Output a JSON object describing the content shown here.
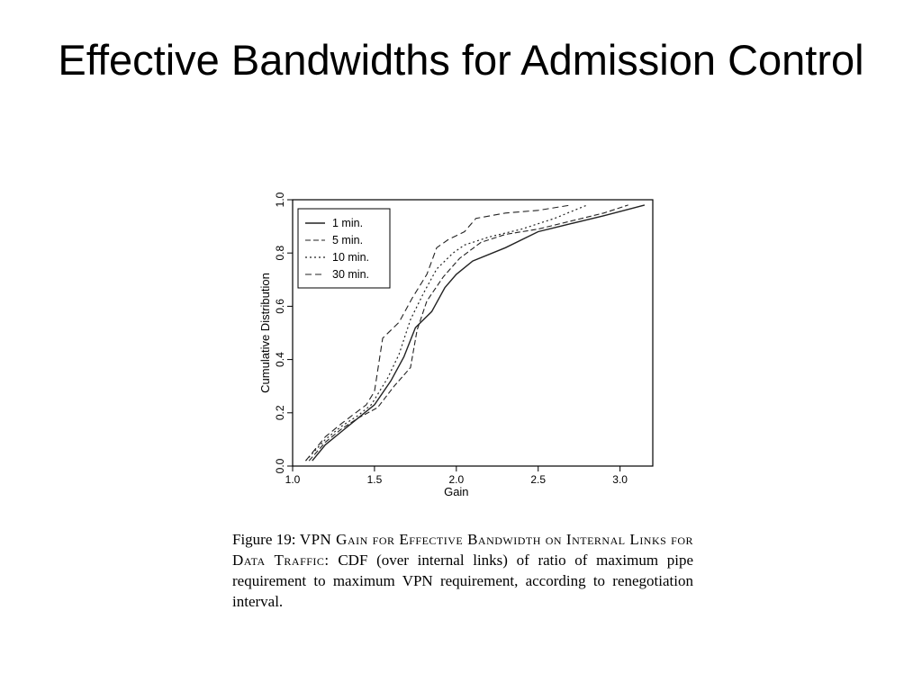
{
  "slide": {
    "title": "Effective Bandwidths for Admission Control"
  },
  "caption": {
    "label": "Figure 19:",
    "heading": "VPN Gain for Effective Bandwidth on Internal Links for Data Traffic:",
    "body": "CDF (over internal links) of ratio of maximum pipe requirement to maximum VPN requirement, according to renegotiation interval."
  },
  "chart_data": {
    "type": "line",
    "title": "",
    "xlabel": "Gain",
    "ylabel": "Cumulative Distribution",
    "xlim": [
      1.0,
      3.2
    ],
    "ylim": [
      0.0,
      1.0
    ],
    "xticks": [
      "1.0",
      "1.5",
      "2.0",
      "2.5",
      "3.0"
    ],
    "yticks": [
      "0.0",
      "0.2",
      "0.4",
      "0.6",
      "0.8",
      "1.0"
    ],
    "grid": false,
    "legend": "top-left",
    "series": [
      {
        "name": "1 min.",
        "x": [
          1.12,
          1.2,
          1.3,
          1.4,
          1.5,
          1.6,
          1.68,
          1.75,
          1.85,
          1.93,
          2.0,
          2.1,
          2.3,
          2.5,
          2.7,
          2.9,
          3.15
        ],
        "y": [
          0.02,
          0.08,
          0.13,
          0.18,
          0.23,
          0.32,
          0.41,
          0.52,
          0.58,
          0.67,
          0.72,
          0.77,
          0.82,
          0.88,
          0.91,
          0.94,
          0.98
        ]
      },
      {
        "name": "5 min.",
        "x": [
          1.1,
          1.2,
          1.3,
          1.4,
          1.52,
          1.62,
          1.72,
          1.76,
          1.82,
          1.92,
          2.02,
          2.15,
          2.3,
          2.5,
          2.7,
          2.9,
          3.05
        ],
        "y": [
          0.02,
          0.09,
          0.14,
          0.18,
          0.22,
          0.3,
          0.37,
          0.51,
          0.62,
          0.71,
          0.78,
          0.84,
          0.87,
          0.89,
          0.92,
          0.95,
          0.98
        ]
      },
      {
        "name": "10 min.",
        "x": [
          1.08,
          1.2,
          1.3,
          1.4,
          1.48,
          1.58,
          1.65,
          1.72,
          1.8,
          1.88,
          1.98,
          2.05,
          2.2,
          2.4,
          2.6,
          2.72,
          2.8
        ],
        "y": [
          0.02,
          0.1,
          0.15,
          0.19,
          0.23,
          0.33,
          0.42,
          0.55,
          0.65,
          0.74,
          0.8,
          0.83,
          0.86,
          0.89,
          0.93,
          0.96,
          0.98
        ]
      },
      {
        "name": "30 min.",
        "x": [
          1.08,
          1.2,
          1.3,
          1.45,
          1.5,
          1.55,
          1.65,
          1.73,
          1.82,
          1.88,
          1.95,
          2.05,
          2.12,
          2.3,
          2.5,
          2.7
        ],
        "y": [
          0.02,
          0.11,
          0.16,
          0.23,
          0.28,
          0.48,
          0.54,
          0.63,
          0.72,
          0.82,
          0.85,
          0.88,
          0.93,
          0.95,
          0.96,
          0.98
        ]
      }
    ]
  }
}
